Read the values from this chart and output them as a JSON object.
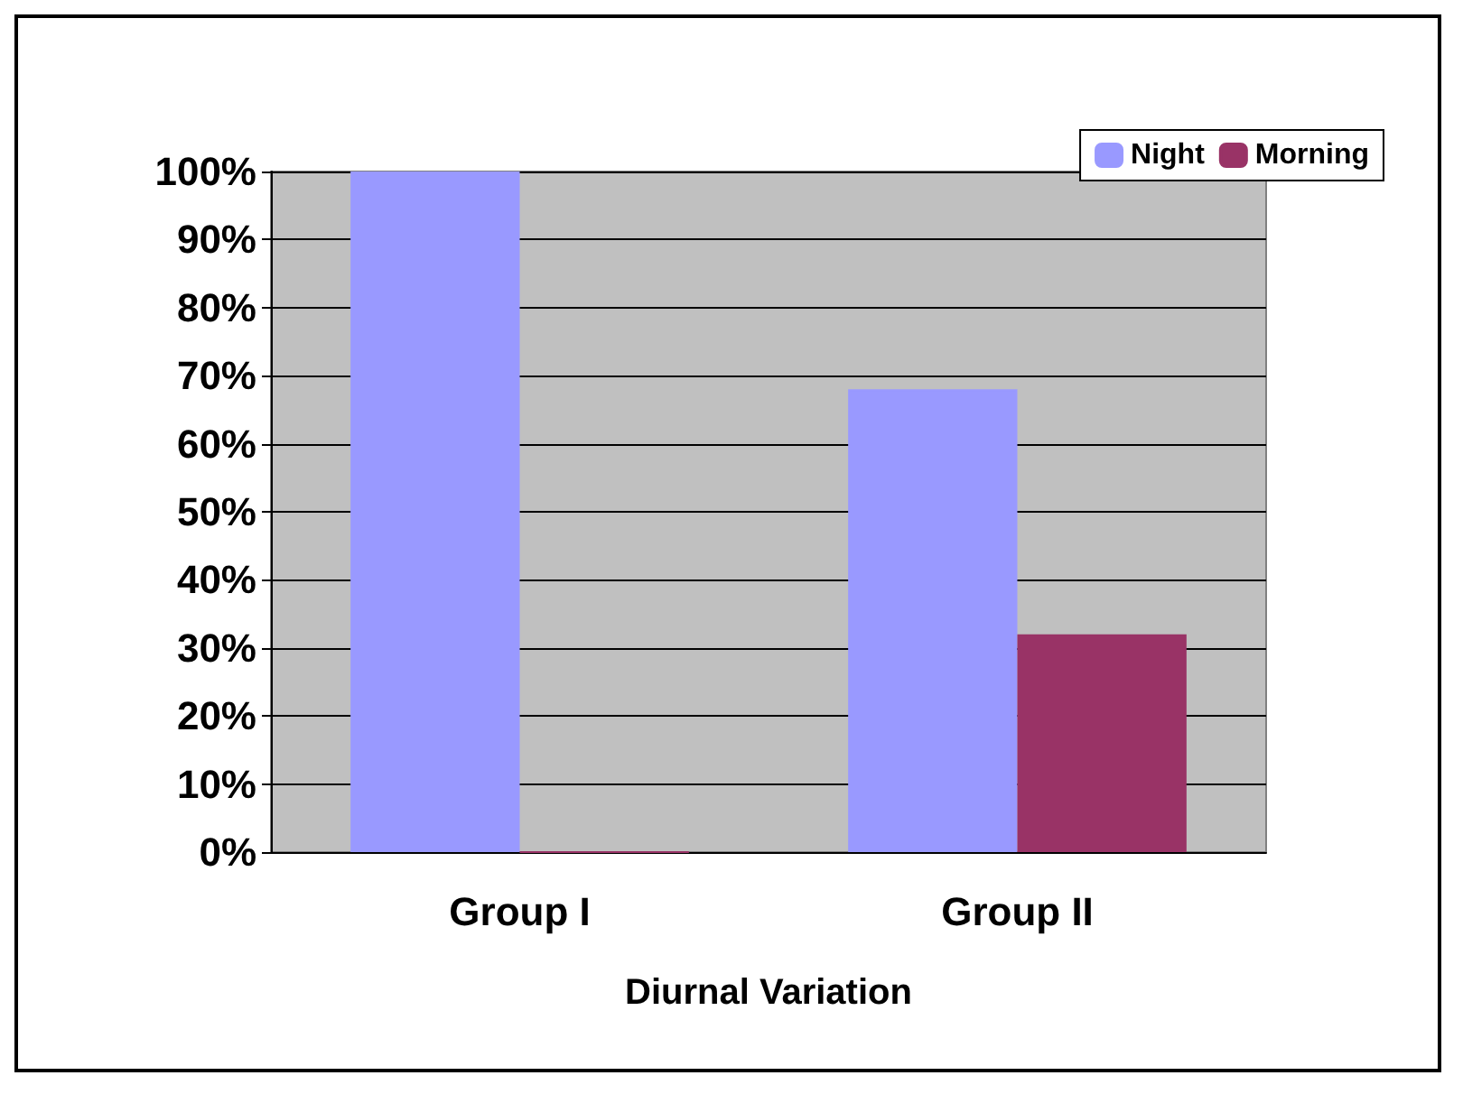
{
  "chart_data": {
    "type": "bar",
    "xlabel": "Diurnal Variation",
    "categories": [
      "Group I",
      "Group II"
    ],
    "series": [
      {
        "name": "Night",
        "color": "#9999ff",
        "values": [
          100,
          68
        ]
      },
      {
        "name": "Morning",
        "color": "#993366",
        "values": [
          0,
          32
        ]
      }
    ],
    "ylim": [
      0,
      100
    ],
    "yticks": [
      {
        "value": 0,
        "label": "0%"
      },
      {
        "value": 10,
        "label": "10%"
      },
      {
        "value": 20,
        "label": "20%"
      },
      {
        "value": 30,
        "label": "30%"
      },
      {
        "value": 40,
        "label": "40%"
      },
      {
        "value": 50,
        "label": "50%"
      },
      {
        "value": 60,
        "label": "60%"
      },
      {
        "value": 70,
        "label": "70%"
      },
      {
        "value": 80,
        "label": "80%"
      },
      {
        "value": 90,
        "label": "90%"
      },
      {
        "value": 100,
        "label": "100%"
      }
    ],
    "grid": "y",
    "legend": "top right"
  }
}
